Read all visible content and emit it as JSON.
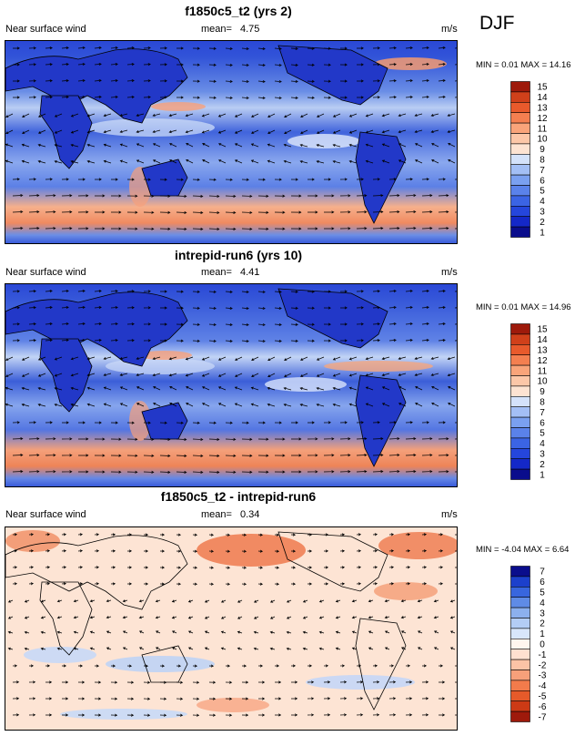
{
  "season": "DJF",
  "panels": [
    {
      "title": "f1850c5_t2 (yrs 2)",
      "left_label": "Near surface wind",
      "mean_label": "mean=",
      "mean_value": "4.75",
      "units": "m/s",
      "minmax": "MIN =  0.01 MAX =  14.16",
      "colorbar_labels": [
        "15",
        "14",
        "13",
        "12",
        "11",
        "10",
        "9",
        "8",
        "7",
        "6",
        "5",
        "4",
        "3",
        "2",
        "1"
      ]
    },
    {
      "title": "intrepid-run6 (yrs 10)",
      "left_label": "Near surface wind",
      "mean_label": "mean=",
      "mean_value": "4.41",
      "units": "m/s",
      "minmax": "MIN =  0.01 MAX =  14.96",
      "colorbar_labels": [
        "15",
        "14",
        "13",
        "12",
        "11",
        "10",
        "9",
        "8",
        "7",
        "6",
        "5",
        "4",
        "3",
        "2",
        "1"
      ]
    },
    {
      "title": "f1850c5_t2 - intrepid-run6",
      "left_label": "Near surface wind",
      "mean_label": "mean=",
      "mean_value": "0.34",
      "units": "m/s",
      "minmax": "MIN = -4.04 MAX =  6.64",
      "colorbar_labels": [
        "7",
        "6",
        "5",
        "4",
        "3",
        "2",
        "1",
        "0",
        "-1",
        "-2",
        "-3",
        "-4",
        "-5",
        "-6",
        "-7"
      ]
    }
  ],
  "chart_data": [
    {
      "type": "heatmap",
      "title": "f1850c5_t2 (yrs 2)",
      "variable": "Near surface wind",
      "units": "m/s",
      "mean": 4.75,
      "min": 0.01,
      "max": 14.16,
      "colorbar_levels": [
        1,
        2,
        3,
        4,
        5,
        6,
        7,
        8,
        9,
        10,
        11,
        12,
        13,
        14,
        15
      ],
      "overlay": "wind vectors"
    },
    {
      "type": "heatmap",
      "title": "intrepid-run6 (yrs 10)",
      "variable": "Near surface wind",
      "units": "m/s",
      "mean": 4.41,
      "min": 0.01,
      "max": 14.96,
      "colorbar_levels": [
        1,
        2,
        3,
        4,
        5,
        6,
        7,
        8,
        9,
        10,
        11,
        12,
        13,
        14,
        15
      ],
      "overlay": "wind vectors"
    },
    {
      "type": "heatmap",
      "title": "f1850c5_t2 - intrepid-run6",
      "variable": "Near surface wind",
      "units": "m/s",
      "mean": 0.34,
      "min": -4.04,
      "max": 6.64,
      "colorbar_levels": [
        -7,
        -6,
        -5,
        -4,
        -3,
        -2,
        -1,
        0,
        1,
        2,
        3,
        4,
        5,
        6,
        7
      ],
      "overlay": "wind vectors"
    }
  ],
  "colors": {
    "seq": [
      "#0a0d8c",
      "#1428c8",
      "#2546dc",
      "#3b64e4",
      "#5a82ea",
      "#7aa0f0",
      "#a3bff5",
      "#d4e2fa",
      "#fde3d2",
      "#fcc7a8",
      "#f9a47a",
      "#f47f50",
      "#e85a2c",
      "#d0401a",
      "#9e1a0b"
    ],
    "div": [
      "#9e1a0b",
      "#cc3a15",
      "#e65a2a",
      "#f27b4b",
      "#f7a07a",
      "#fbc3a6",
      "#fee0d0",
      "#fff6ef",
      "#d8e6fb",
      "#b3cdf5",
      "#8cb0ee",
      "#5f8be6",
      "#3866de",
      "#1c40cc",
      "#0a0d8c"
    ]
  }
}
